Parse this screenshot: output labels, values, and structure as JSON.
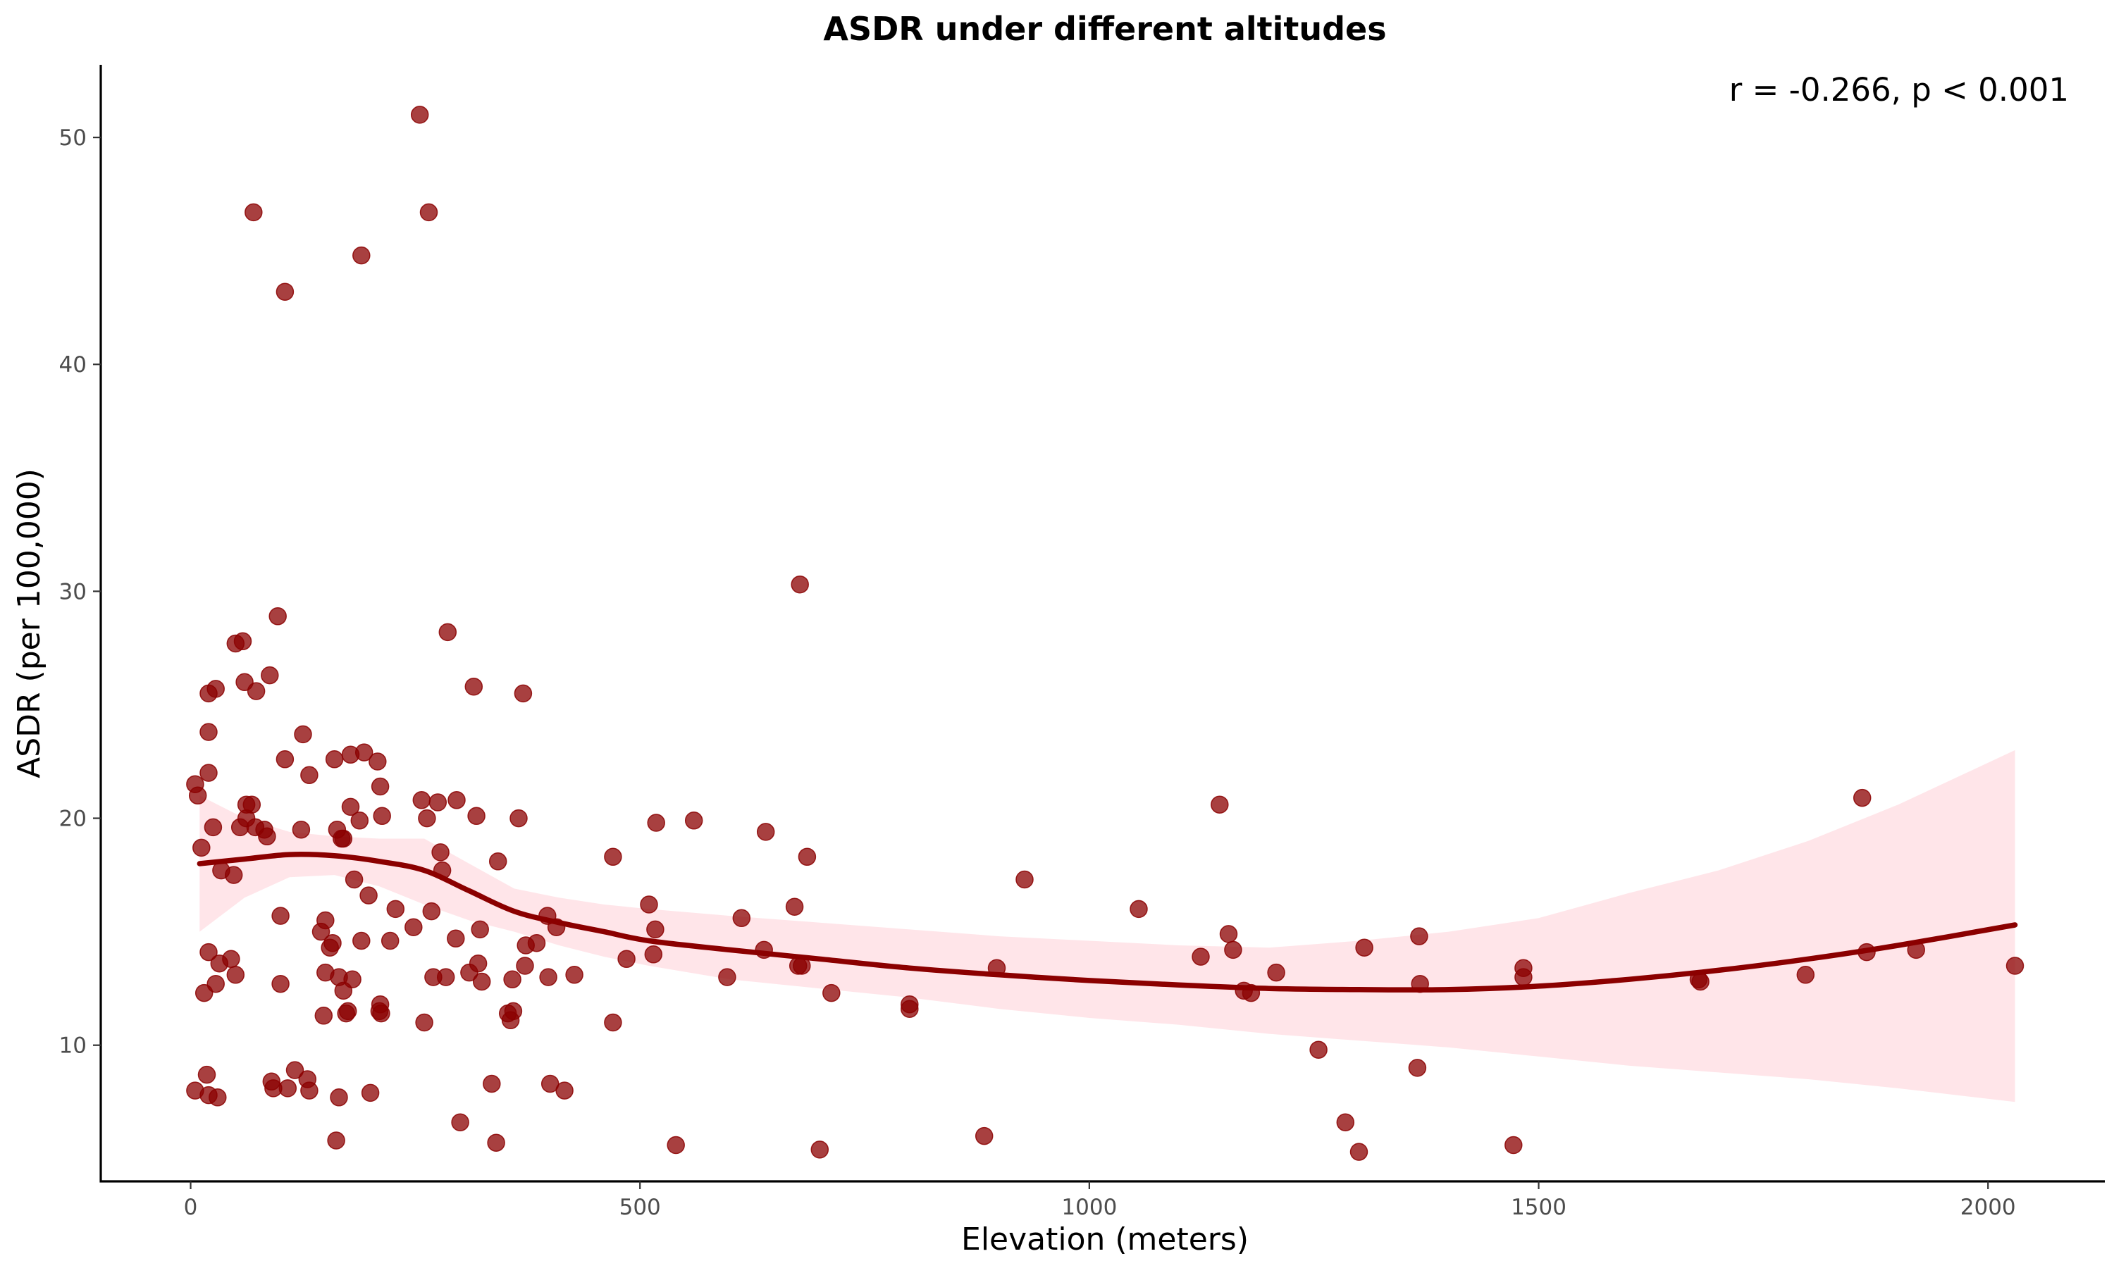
{
  "chart_data": {
    "type": "scatter",
    "title": "ASDR under different altitudes",
    "xlabel": "Elevation (meters)",
    "ylabel": "ASDR (per 100,000)",
    "annotation": "r = -0.266, p < 0.001",
    "annotation_position": "top-right",
    "xlim": [
      -100,
      2130
    ],
    "ylim": [
      4.0,
      53.2
    ],
    "x_ticks": [
      0,
      500,
      1000,
      1500,
      2000
    ],
    "x_tick_labels": [
      "0",
      "500",
      "1000",
      "1500",
      "2000"
    ],
    "y_ticks": [
      10,
      20,
      30,
      40,
      50
    ],
    "y_tick_labels": [
      "10",
      "20",
      "30",
      "40",
      "50"
    ],
    "grid": false,
    "legend": "none",
    "colors": {
      "points": "#8b0000",
      "smooth_line": "#8b0000",
      "confidence_band": "#ffc0cb"
    },
    "points": [
      [
        5,
        21.5
      ],
      [
        8,
        21.0
      ],
      [
        12,
        18.7
      ],
      [
        5,
        8.0
      ],
      [
        15,
        12.3
      ],
      [
        18,
        8.7
      ],
      [
        20,
        7.8
      ],
      [
        20,
        14.1
      ],
      [
        20,
        25.5
      ],
      [
        20,
        23.8
      ],
      [
        20,
        22.0
      ],
      [
        25,
        19.6
      ],
      [
        28,
        12.7
      ],
      [
        30,
        7.7
      ],
      [
        32,
        13.6
      ],
      [
        34,
        17.7
      ],
      [
        28,
        25.7
      ],
      [
        45,
        13.8
      ],
      [
        48,
        17.5
      ],
      [
        50,
        13.1
      ],
      [
        50,
        27.7
      ],
      [
        55,
        19.6
      ],
      [
        58,
        27.8
      ],
      [
        60,
        26.0
      ],
      [
        62,
        20.0
      ],
      [
        62,
        20.6
      ],
      [
        68,
        20.6
      ],
      [
        70,
        46.7
      ],
      [
        72,
        19.6
      ],
      [
        73,
        25.6
      ],
      [
        82,
        19.5
      ],
      [
        85,
        19.2
      ],
      [
        88,
        26.3
      ],
      [
        90,
        8.4
      ],
      [
        92,
        8.1
      ],
      [
        97,
        28.9
      ],
      [
        100,
        12.7
      ],
      [
        100,
        15.7
      ],
      [
        105,
        43.2
      ],
      [
        105,
        22.6
      ],
      [
        108,
        8.1
      ],
      [
        116,
        8.9
      ],
      [
        123,
        19.5
      ],
      [
        125,
        23.7
      ],
      [
        130,
        8.5
      ],
      [
        132,
        8.0
      ],
      [
        132,
        21.9
      ],
      [
        145,
        15.0
      ],
      [
        148,
        11.3
      ],
      [
        150,
        13.2
      ],
      [
        150,
        15.5
      ],
      [
        155,
        14.3
      ],
      [
        158,
        14.5
      ],
      [
        160,
        22.6
      ],
      [
        162,
        5.8
      ],
      [
        163,
        19.5
      ],
      [
        165,
        7.7
      ],
      [
        165,
        13.0
      ],
      [
        168,
        19.1
      ],
      [
        170,
        19.1
      ],
      [
        170,
        12.4
      ],
      [
        173,
        11.4
      ],
      [
        175,
        11.5
      ],
      [
        178,
        20.5
      ],
      [
        178,
        22.8
      ],
      [
        180,
        12.9
      ],
      [
        182,
        17.3
      ],
      [
        188,
        19.9
      ],
      [
        190,
        44.8
      ],
      [
        190,
        14.6
      ],
      [
        193,
        22.9
      ],
      [
        198,
        16.6
      ],
      [
        200,
        7.9
      ],
      [
        208,
        22.5
      ],
      [
        210,
        11.5
      ],
      [
        211,
        11.8
      ],
      [
        211,
        21.4
      ],
      [
        212,
        11.4
      ],
      [
        213,
        20.1
      ],
      [
        222,
        14.6
      ],
      [
        228,
        16.0
      ],
      [
        248,
        15.2
      ],
      [
        255,
        51.0
      ],
      [
        257,
        20.8
      ],
      [
        260,
        11.0
      ],
      [
        263,
        20.0
      ],
      [
        265,
        46.7
      ],
      [
        268,
        15.9
      ],
      [
        270,
        13.0
      ],
      [
        275,
        20.7
      ],
      [
        278,
        18.5
      ],
      [
        280,
        17.7
      ],
      [
        284,
        13.0
      ],
      [
        286,
        28.2
      ],
      [
        295,
        14.7
      ],
      [
        296,
        20.8
      ],
      [
        300,
        6.6
      ],
      [
        310,
        13.2
      ],
      [
        315,
        25.8
      ],
      [
        318,
        20.1
      ],
      [
        320,
        13.6
      ],
      [
        322,
        15.1
      ],
      [
        324,
        12.8
      ],
      [
        335,
        8.3
      ],
      [
        340,
        5.7
      ],
      [
        342,
        18.1
      ],
      [
        353,
        11.4
      ],
      [
        356,
        11.1
      ],
      [
        358,
        12.9
      ],
      [
        359,
        11.5
      ],
      [
        365,
        20.0
      ],
      [
        370,
        25.5
      ],
      [
        372,
        13.5
      ],
      [
        373,
        14.4
      ],
      [
        385,
        14.5
      ],
      [
        397,
        15.7
      ],
      [
        398,
        13.0
      ],
      [
        400,
        8.3
      ],
      [
        407,
        15.2
      ],
      [
        416,
        8.0
      ],
      [
        427,
        13.1
      ],
      [
        470,
        18.3
      ],
      [
        470,
        11.0
      ],
      [
        485,
        13.8
      ],
      [
        510,
        16.2
      ],
      [
        515,
        14.0
      ],
      [
        517,
        15.1
      ],
      [
        518,
        19.8
      ],
      [
        540,
        5.6
      ],
      [
        560,
        19.9
      ],
      [
        597,
        13.0
      ],
      [
        613,
        15.6
      ],
      [
        638,
        14.2
      ],
      [
        640,
        19.4
      ],
      [
        672,
        16.1
      ],
      [
        676,
        13.5
      ],
      [
        678,
        30.3
      ],
      [
        680,
        13.5
      ],
      [
        686,
        18.3
      ],
      [
        700,
        5.4
      ],
      [
        713,
        12.3
      ],
      [
        800,
        11.8
      ],
      [
        800,
        11.6
      ],
      [
        883,
        6.0
      ],
      [
        897,
        13.4
      ],
      [
        928,
        17.3
      ],
      [
        1055,
        16.0
      ],
      [
        1124,
        13.9
      ],
      [
        1145,
        20.6
      ],
      [
        1155,
        14.9
      ],
      [
        1160,
        14.2
      ],
      [
        1172,
        12.4
      ],
      [
        1180,
        12.3
      ],
      [
        1208,
        13.2
      ],
      [
        1255,
        9.8
      ],
      [
        1285,
        6.6
      ],
      [
        1300,
        5.3
      ],
      [
        1306,
        14.3
      ],
      [
        1365,
        9.0
      ],
      [
        1367,
        14.8
      ],
      [
        1368,
        12.7
      ],
      [
        1472,
        5.6
      ],
      [
        1483,
        13.4
      ],
      [
        1483,
        13.0
      ],
      [
        1678,
        12.9
      ],
      [
        1680,
        12.8
      ],
      [
        1797,
        13.1
      ],
      [
        1860,
        20.9
      ],
      [
        1865,
        14.1
      ],
      [
        1920,
        14.2
      ],
      [
        2030,
        13.5
      ]
    ],
    "smooth": {
      "x": [
        10,
        60,
        110,
        160,
        210,
        260,
        310,
        360,
        410,
        460,
        510,
        600,
        700,
        800,
        900,
        1000,
        1100,
        1200,
        1300,
        1400,
        1500,
        1600,
        1700,
        1800,
        1900,
        2030
      ],
      "y": [
        18.0,
        18.2,
        18.4,
        18.35,
        18.1,
        17.7,
        16.8,
        15.9,
        15.4,
        15.0,
        14.6,
        14.2,
        13.8,
        13.4,
        13.1,
        12.85,
        12.65,
        12.5,
        12.45,
        12.45,
        12.6,
        12.9,
        13.3,
        13.8,
        14.4,
        15.3
      ],
      "lower": [
        15.0,
        16.5,
        17.4,
        17.5,
        17.0,
        16.2,
        15.5,
        15.0,
        14.4,
        13.9,
        13.5,
        12.9,
        12.5,
        12.1,
        11.6,
        11.2,
        10.9,
        10.5,
        10.2,
        9.9,
        9.5,
        9.1,
        8.8,
        8.5,
        8.1,
        7.5
      ],
      "upper": [
        21.0,
        20.0,
        19.4,
        19.2,
        19.1,
        19.1,
        18.0,
        16.9,
        16.5,
        16.2,
        16.0,
        15.7,
        15.4,
        15.1,
        14.8,
        14.6,
        14.4,
        14.3,
        14.6,
        15.0,
        15.6,
        16.7,
        17.7,
        19.0,
        20.6,
        23.0
      ]
    }
  }
}
